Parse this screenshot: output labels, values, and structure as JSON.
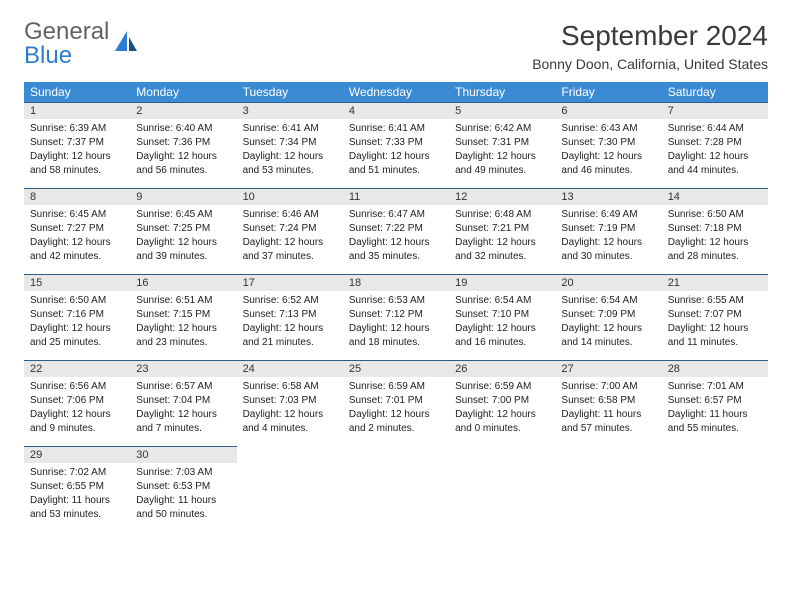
{
  "brand": {
    "part1": "General",
    "part2": "Blue"
  },
  "title": "September 2024",
  "location": "Bonny Doon, California, United States",
  "colors": {
    "header_bg": "#3b8bd4",
    "header_text": "#ffffff",
    "daynum_bg": "#e8e8e8",
    "border": "#2d5b8a",
    "logo_gray": "#5f6368",
    "logo_blue": "#2d7dd2"
  },
  "weekdays": [
    "Sunday",
    "Monday",
    "Tuesday",
    "Wednesday",
    "Thursday",
    "Friday",
    "Saturday"
  ],
  "start_offset": 0,
  "days": [
    {
      "n": 1,
      "sunrise": "6:39 AM",
      "sunset": "7:37 PM",
      "dl": "12 hours and 58 minutes."
    },
    {
      "n": 2,
      "sunrise": "6:40 AM",
      "sunset": "7:36 PM",
      "dl": "12 hours and 56 minutes."
    },
    {
      "n": 3,
      "sunrise": "6:41 AM",
      "sunset": "7:34 PM",
      "dl": "12 hours and 53 minutes."
    },
    {
      "n": 4,
      "sunrise": "6:41 AM",
      "sunset": "7:33 PM",
      "dl": "12 hours and 51 minutes."
    },
    {
      "n": 5,
      "sunrise": "6:42 AM",
      "sunset": "7:31 PM",
      "dl": "12 hours and 49 minutes."
    },
    {
      "n": 6,
      "sunrise": "6:43 AM",
      "sunset": "7:30 PM",
      "dl": "12 hours and 46 minutes."
    },
    {
      "n": 7,
      "sunrise": "6:44 AM",
      "sunset": "7:28 PM",
      "dl": "12 hours and 44 minutes."
    },
    {
      "n": 8,
      "sunrise": "6:45 AM",
      "sunset": "7:27 PM",
      "dl": "12 hours and 42 minutes."
    },
    {
      "n": 9,
      "sunrise": "6:45 AM",
      "sunset": "7:25 PM",
      "dl": "12 hours and 39 minutes."
    },
    {
      "n": 10,
      "sunrise": "6:46 AM",
      "sunset": "7:24 PM",
      "dl": "12 hours and 37 minutes."
    },
    {
      "n": 11,
      "sunrise": "6:47 AM",
      "sunset": "7:22 PM",
      "dl": "12 hours and 35 minutes."
    },
    {
      "n": 12,
      "sunrise": "6:48 AM",
      "sunset": "7:21 PM",
      "dl": "12 hours and 32 minutes."
    },
    {
      "n": 13,
      "sunrise": "6:49 AM",
      "sunset": "7:19 PM",
      "dl": "12 hours and 30 minutes."
    },
    {
      "n": 14,
      "sunrise": "6:50 AM",
      "sunset": "7:18 PM",
      "dl": "12 hours and 28 minutes."
    },
    {
      "n": 15,
      "sunrise": "6:50 AM",
      "sunset": "7:16 PM",
      "dl": "12 hours and 25 minutes."
    },
    {
      "n": 16,
      "sunrise": "6:51 AM",
      "sunset": "7:15 PM",
      "dl": "12 hours and 23 minutes."
    },
    {
      "n": 17,
      "sunrise": "6:52 AM",
      "sunset": "7:13 PM",
      "dl": "12 hours and 21 minutes."
    },
    {
      "n": 18,
      "sunrise": "6:53 AM",
      "sunset": "7:12 PM",
      "dl": "12 hours and 18 minutes."
    },
    {
      "n": 19,
      "sunrise": "6:54 AM",
      "sunset": "7:10 PM",
      "dl": "12 hours and 16 minutes."
    },
    {
      "n": 20,
      "sunrise": "6:54 AM",
      "sunset": "7:09 PM",
      "dl": "12 hours and 14 minutes."
    },
    {
      "n": 21,
      "sunrise": "6:55 AM",
      "sunset": "7:07 PM",
      "dl": "12 hours and 11 minutes."
    },
    {
      "n": 22,
      "sunrise": "6:56 AM",
      "sunset": "7:06 PM",
      "dl": "12 hours and 9 minutes."
    },
    {
      "n": 23,
      "sunrise": "6:57 AM",
      "sunset": "7:04 PM",
      "dl": "12 hours and 7 minutes."
    },
    {
      "n": 24,
      "sunrise": "6:58 AM",
      "sunset": "7:03 PM",
      "dl": "12 hours and 4 minutes."
    },
    {
      "n": 25,
      "sunrise": "6:59 AM",
      "sunset": "7:01 PM",
      "dl": "12 hours and 2 minutes."
    },
    {
      "n": 26,
      "sunrise": "6:59 AM",
      "sunset": "7:00 PM",
      "dl": "12 hours and 0 minutes."
    },
    {
      "n": 27,
      "sunrise": "7:00 AM",
      "sunset": "6:58 PM",
      "dl": "11 hours and 57 minutes."
    },
    {
      "n": 28,
      "sunrise": "7:01 AM",
      "sunset": "6:57 PM",
      "dl": "11 hours and 55 minutes."
    },
    {
      "n": 29,
      "sunrise": "7:02 AM",
      "sunset": "6:55 PM",
      "dl": "11 hours and 53 minutes."
    },
    {
      "n": 30,
      "sunrise": "7:03 AM",
      "sunset": "6:53 PM",
      "dl": "11 hours and 50 minutes."
    }
  ],
  "labels": {
    "sunrise": "Sunrise: ",
    "sunset": "Sunset: ",
    "daylight": "Daylight: "
  }
}
